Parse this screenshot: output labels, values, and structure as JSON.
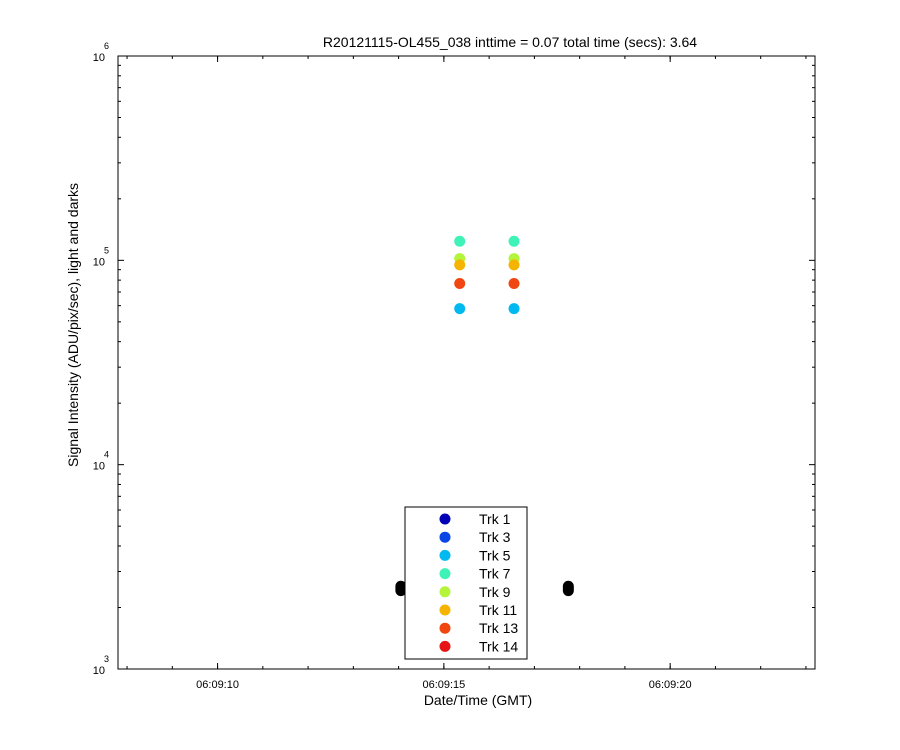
{
  "chart_data": {
    "type": "scatter",
    "title": "R20121115-OL455_038 inttime = 0.07 total time (secs): 3.64",
    "xlabel": "Date/Time (GMT)",
    "ylabel": "Signal Intensity (ADU/pix/sec), light and darks",
    "xlim": [
      "06:09:07.8",
      "06:09:23.2"
    ],
    "ylim": [
      1000,
      1000000
    ],
    "yscale": "log",
    "grid": false,
    "legend_position": "bottom-center",
    "x_ticks": [
      "06:09:10",
      "06:09:15",
      "06:09:20"
    ],
    "y_ticks": [
      {
        "base": "10",
        "exp": "3",
        "value": 1000
      },
      {
        "base": "10",
        "exp": "4",
        "value": 10000
      },
      {
        "base": "10",
        "exp": "5",
        "value": 100000
      },
      {
        "base": "10",
        "exp": "6",
        "value": 1000000
      }
    ],
    "series": [
      {
        "name": "Trk 1",
        "color": "#0000b4",
        "x": [],
        "y": []
      },
      {
        "name": "Trk 3",
        "color": "#0a46e6",
        "x": [],
        "y": []
      },
      {
        "name": "Trk 5",
        "color": "#00b9f0",
        "x": [
          "06:09:15.35",
          "06:09:16.55"
        ],
        "y": [
          58000,
          58000
        ]
      },
      {
        "name": "Trk 7",
        "color": "#3ff2b8",
        "x": [
          "06:09:15.35",
          "06:09:16.55"
        ],
        "y": [
          124000,
          124000
        ]
      },
      {
        "name": "Trk 9",
        "color": "#b4f53c",
        "x": [
          "06:09:15.35",
          "06:09:16.55"
        ],
        "y": [
          102000,
          102000
        ]
      },
      {
        "name": "Trk 11",
        "color": "#f5b400",
        "x": [
          "06:09:15.35",
          "06:09:16.55"
        ],
        "y": [
          95000,
          95000
        ]
      },
      {
        "name": "Trk 13",
        "color": "#f0460f",
        "x": [
          "06:09:15.35",
          "06:09:16.55"
        ],
        "y": [
          77000,
          77000
        ]
      },
      {
        "name": "Trk 14",
        "color": "#e61414",
        "x": [],
        "y": []
      }
    ],
    "darks": {
      "color": "#000000",
      "x": [
        "06:09:14.05",
        "06:09:14.05",
        "06:09:14.05",
        "06:09:17.75",
        "06:09:17.75",
        "06:09:17.75"
      ],
      "y": [
        2420,
        2480,
        2540,
        2420,
        2480,
        2540
      ]
    }
  }
}
